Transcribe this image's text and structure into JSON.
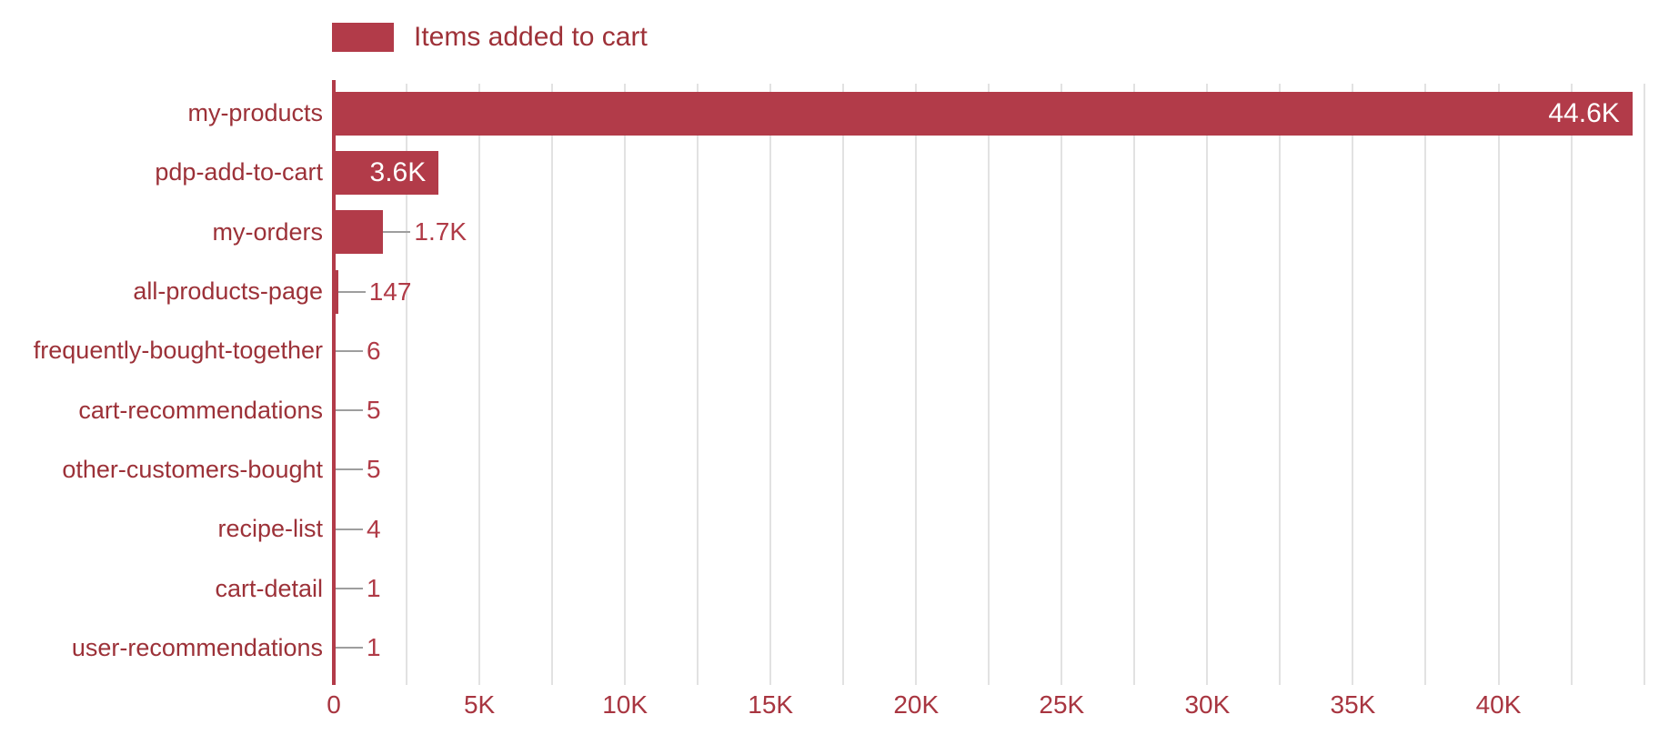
{
  "legend": {
    "label": "Items added to cart",
    "position": "top"
  },
  "colors": {
    "bar": "#b23b49",
    "axis_line": "#b23b49",
    "category_label": "#9c3138",
    "value_label_outside": "#b03a46",
    "value_label_inside": "#ffffff",
    "tick_label": "#a83540",
    "legend_text": "#9e3138",
    "gridline": "#e2e2e2",
    "leader_line": "#9e9e9e",
    "background": "#ffffff"
  },
  "chart_data": {
    "type": "bar",
    "orientation": "horizontal",
    "title": "",
    "xlabel": "",
    "ylabel": "",
    "grid": true,
    "legend_position": "top",
    "series": [
      {
        "name": "Items added to cart",
        "color": "#b23b49"
      }
    ],
    "categories": [
      "my-products",
      "pdp-add-to-cart",
      "my-orders",
      "all-products-page",
      "frequently-bought-together",
      "cart-recommendations",
      "other-customers-bought",
      "recipe-list",
      "cart-detail",
      "user-recommendations"
    ],
    "values": [
      44600,
      3600,
      1700,
      147,
      6,
      5,
      5,
      4,
      1,
      1
    ],
    "value_labels": [
      "44.6K",
      "3.6K",
      "1.7K",
      "147",
      "6",
      "5",
      "5",
      "4",
      "1",
      "1"
    ],
    "label_placement": [
      "inside-end",
      "inside-end",
      "outside",
      "outside",
      "outside",
      "outside",
      "outside",
      "outside",
      "outside",
      "outside"
    ],
    "xlim": [
      0,
      46200
    ],
    "gridline_interval": 2500,
    "x_ticks": [
      {
        "label": "0",
        "value": 0
      },
      {
        "label": "5K",
        "value": 5000
      },
      {
        "label": "10K",
        "value": 10000
      },
      {
        "label": "15K",
        "value": 15000
      },
      {
        "label": "20K",
        "value": 20000
      },
      {
        "label": "25K",
        "value": 25000
      },
      {
        "label": "30K",
        "value": 30000
      },
      {
        "label": "35K",
        "value": 35000
      },
      {
        "label": "40K",
        "value": 40000
      }
    ]
  }
}
